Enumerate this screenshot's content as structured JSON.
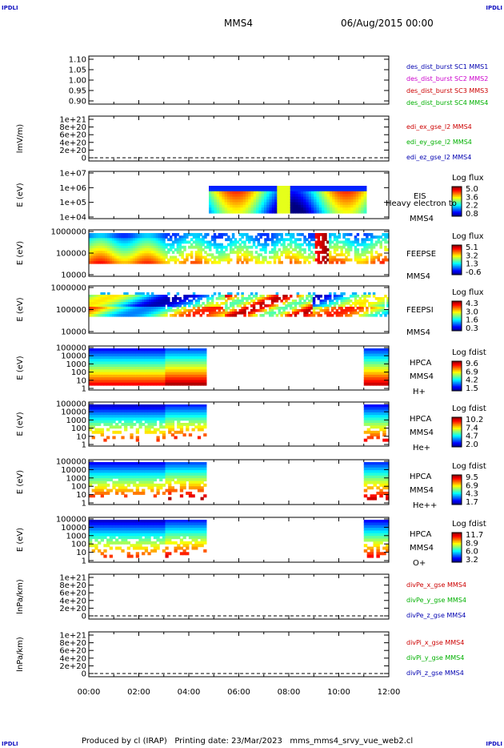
{
  "header": {
    "left_logo": "IPDLI",
    "right_logo": "IPDLI",
    "spacecraft": "MMS4",
    "datetime": "06/Aug/2015 00:00"
  },
  "footer": {
    "left_logo": "IPDLI",
    "right_logo": "IPDLI",
    "text": "Produced by cl (IRAP)   Printing date: 23/Mar/2023   mms_mms4_srvy_vue_web2.cl"
  },
  "colors": {
    "red": "#cc0000",
    "green": "#00b000",
    "blue": "#0000b0",
    "magenta": "#cc00cc"
  },
  "chart_data": [
    {
      "type": "line",
      "name": "panel-1",
      "ylabel": "",
      "yticks": [
        "1.10",
        "1.05",
        "1.00",
        "0.95",
        "0.90"
      ],
      "ylim": [
        0.9,
        1.1
      ],
      "legend": [
        {
          "text": "des_dist_burst SC1 MMS1",
          "color": "#0000b0"
        },
        {
          "text": "des_dist_burst SC2 MMS2",
          "color": "#cc00cc"
        },
        {
          "text": "des_dist_burst SC3 MMS3",
          "color": "#cc0000"
        },
        {
          "text": "des_dist_burst SC4 MMS4",
          "color": "#00b000"
        }
      ]
    },
    {
      "type": "line",
      "name": "panel-2",
      "ylabel": "lmV/m)",
      "yticks": [
        "1e+21",
        "8e+20",
        "6e+20",
        "4e+20",
        "2e+20",
        "0"
      ],
      "ylim": [
        0,
        1e+21
      ],
      "legend": [
        {
          "text": "edi_ex_gse_l2 MMS4",
          "color": "#cc0000"
        },
        {
          "text": "edi_ey_gse_l2 MMS4",
          "color": "#00b000"
        },
        {
          "text": "edi_ez_gse_l2 MMS4",
          "color": "#0000b0"
        }
      ]
    },
    {
      "type": "heatmap",
      "name": "panel-3",
      "ylabel": "E (eV)",
      "yticks": [
        "1e+07",
        "1e+06",
        "1e+05",
        "1e+04"
      ],
      "ylim": [
        10000.0,
        10000000.0
      ],
      "labels": [
        "EIS",
        "Heavy electron to",
        "MMS4"
      ],
      "colorbar": {
        "title": "Log flux",
        "ticks": [
          "5.0",
          "3.6",
          "2.2",
          "0.8"
        ]
      }
    },
    {
      "type": "heatmap",
      "name": "panel-4",
      "ylabel": "E (eV)",
      "yticks": [
        "1000000",
        "100000",
        "10000"
      ],
      "ylim": [
        10000.0,
        1000000.0
      ],
      "labels": [
        "FEEPSE",
        "MMS4"
      ],
      "colorbar": {
        "title": "Log flux",
        "ticks": [
          "5.1",
          "3.2",
          "1.3",
          "-0.6"
        ]
      }
    },
    {
      "type": "heatmap",
      "name": "panel-5",
      "ylabel": "E (eV)",
      "yticks": [
        "1000000",
        "100000",
        "10000"
      ],
      "ylim": [
        10000.0,
        1000000.0
      ],
      "labels": [
        "FEEPSI",
        "MMS4"
      ],
      "colorbar": {
        "title": "Log flux",
        "ticks": [
          "4.3",
          "3.0",
          "1.6",
          "0.3"
        ]
      }
    },
    {
      "type": "heatmap",
      "name": "panel-6",
      "ylabel": "E (eV)",
      "yticks": [
        "100000",
        "10000",
        "1000",
        "100",
        "10",
        "1"
      ],
      "ylim": [
        1,
        100000.0
      ],
      "labels": [
        "HPCA",
        "MMS4",
        "H+"
      ],
      "colorbar": {
        "title": "Log fdist",
        "ticks": [
          "9.6",
          "6.9",
          "4.2",
          "1.5"
        ]
      }
    },
    {
      "type": "heatmap",
      "name": "panel-7",
      "ylabel": "E (eV)",
      "yticks": [
        "100000",
        "10000",
        "1000",
        "100",
        "10",
        "1"
      ],
      "ylim": [
        1,
        100000.0
      ],
      "labels": [
        "HPCA",
        "MMS4",
        "He+"
      ],
      "colorbar": {
        "title": "Log fdist",
        "ticks": [
          "10.2",
          "7.4",
          "4.7",
          "2.0"
        ]
      }
    },
    {
      "type": "heatmap",
      "name": "panel-8",
      "ylabel": "E (eV)",
      "yticks": [
        "100000",
        "10000",
        "1000",
        "100",
        "10",
        "1"
      ],
      "ylim": [
        1,
        100000.0
      ],
      "labels": [
        "HPCA",
        "MMS4",
        "He++"
      ],
      "colorbar": {
        "title": "Log fdist",
        "ticks": [
          "9.5",
          "6.9",
          "4.3",
          "1.7"
        ]
      }
    },
    {
      "type": "heatmap",
      "name": "panel-9",
      "ylabel": "E (eV)",
      "yticks": [
        "100000",
        "10000",
        "1000",
        "100",
        "10",
        "1"
      ],
      "ylim": [
        1,
        100000.0
      ],
      "labels": [
        "HPCA",
        "MMS4",
        "O+"
      ],
      "colorbar": {
        "title": "Log fdist",
        "ticks": [
          "11.7",
          "8.9",
          "6.0",
          "3.2"
        ]
      }
    },
    {
      "type": "line",
      "name": "panel-10",
      "ylabel": "lnPa/km)",
      "yticks": [
        "1e+21",
        "8e+20",
        "6e+20",
        "4e+20",
        "2e+20",
        "0"
      ],
      "ylim": [
        0,
        1e+21
      ],
      "legend": [
        {
          "text": "divPe_x_gse MMS4",
          "color": "#cc0000"
        },
        {
          "text": "divPe_y_gse MMS4",
          "color": "#00b000"
        },
        {
          "text": "divPe_z_gse MMS4",
          "color": "#0000b0"
        }
      ]
    },
    {
      "type": "line",
      "name": "panel-11",
      "ylabel": "lnPa/km)",
      "yticks": [
        "1e+21",
        "8e+20",
        "6e+20",
        "4e+20",
        "2e+20",
        "0"
      ],
      "ylim": [
        0,
        1e+21
      ],
      "legend": [
        {
          "text": "divPi_x_gse MMS4",
          "color": "#cc0000"
        },
        {
          "text": "divPi_y_gse MMS4",
          "color": "#00b000"
        },
        {
          "text": "divPi_z_gse MMS4",
          "color": "#0000b0"
        }
      ]
    }
  ],
  "x_axis": {
    "ticks": [
      "00:00",
      "02:00",
      "04:00",
      "06:00",
      "08:00",
      "10:00",
      "12:00"
    ],
    "range_hours": [
      0,
      12
    ]
  }
}
